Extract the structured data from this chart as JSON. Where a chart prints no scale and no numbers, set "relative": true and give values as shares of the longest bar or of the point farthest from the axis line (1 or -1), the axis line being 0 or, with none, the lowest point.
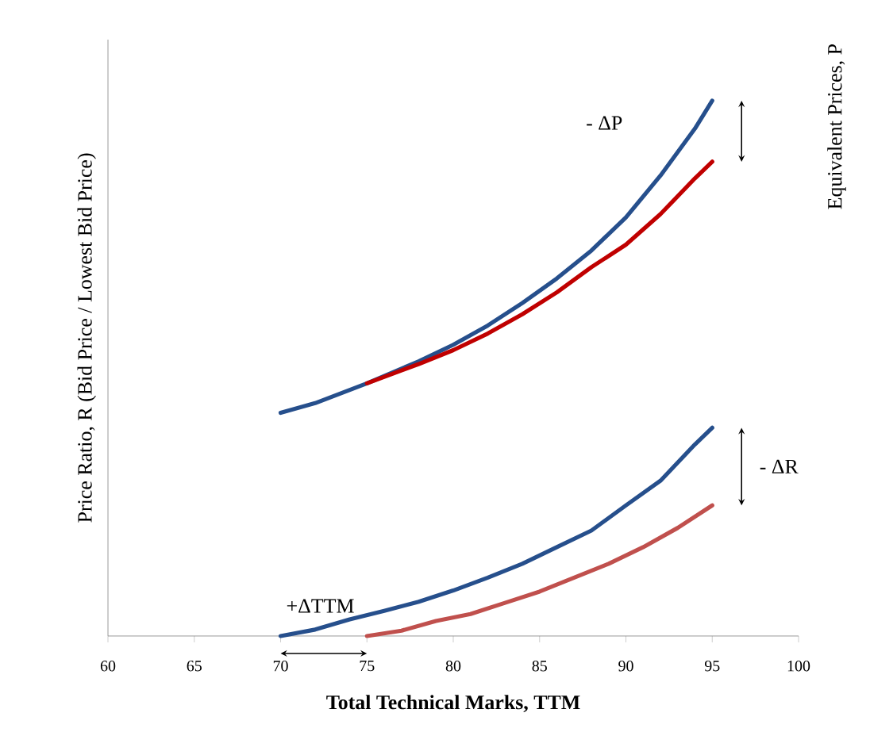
{
  "chart_data": {
    "type": "line",
    "relative": true,
    "xlabel": "Total Technical Marks, TTM",
    "ylabel": "Price Ratio, R (Bid Price / Lowest Bid Price)",
    "y2label": "Equivalent Prices, P",
    "xlim": [
      60,
      100
    ],
    "xticks": [
      60,
      65,
      70,
      75,
      80,
      85,
      90,
      95,
      100
    ],
    "series": [
      {
        "color": "#264f8c",
        "x": [
          70,
          72,
          75,
          78,
          80,
          82,
          84,
          86,
          88,
          90,
          92,
          94,
          95
        ],
        "values": [
          0.417,
          0.435,
          0.472,
          0.513,
          0.544,
          0.58,
          0.622,
          0.668,
          0.72,
          0.782,
          0.86,
          0.948,
          1
        ]
      },
      {
        "color": "#c00000",
        "x": [
          75,
          78,
          80,
          82,
          84,
          86,
          88,
          90,
          92,
          94,
          95
        ],
        "values": [
          0.472,
          0.508,
          0.534,
          0.565,
          0.601,
          0.642,
          0.689,
          0.731,
          0.788,
          0.855,
          0.886
        ]
      },
      {
        "color": "#264f8c",
        "x": [
          70,
          72,
          74,
          76,
          78,
          80,
          82,
          84,
          86,
          88,
          90,
          92,
          94,
          95
        ],
        "values": [
          0,
          0.012,
          0.031,
          0.047,
          0.064,
          0.085,
          0.109,
          0.135,
          0.166,
          0.197,
          0.244,
          0.29,
          0.358,
          0.389
        ]
      },
      {
        "color": "#c0504d",
        "x": [
          75,
          77,
          79,
          81,
          83,
          85,
          87,
          89,
          91,
          93,
          95
        ],
        "values": [
          0,
          0.01,
          0.028,
          0.041,
          0.062,
          0.083,
          0.109,
          0.135,
          0.166,
          0.202,
          0.244
        ]
      }
    ],
    "annotations": [
      "- ΔP",
      "- ΔR",
      "+ΔTTM"
    ]
  }
}
